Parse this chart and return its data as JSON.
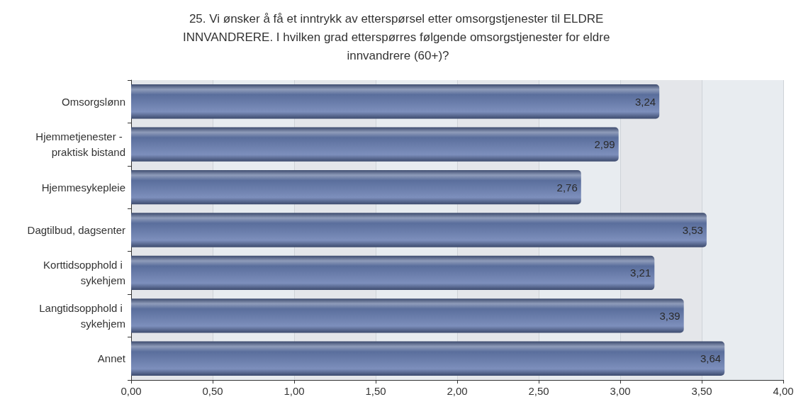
{
  "chart_data": {
    "type": "bar",
    "orientation": "horizontal",
    "title": "25. Vi ønsker å få et inntrykk av etterspørsel etter omsorgstjenester til ELDRE INNVANDRERE. I hvilken grad etterspørres følgende omsorgstjenester for eldre innvandrere (60+)?",
    "categories": [
      "Omsorgslønn",
      "Hjemmetjenester - praktisk bistand",
      "Hjemmesykepleie",
      "Dagtilbud, dagsenter",
      "Korttidsopphold i sykehjem",
      "Langtidsopphold i sykehjem",
      "Annet"
    ],
    "values": [
      3.24,
      2.99,
      2.76,
      3.53,
      3.21,
      3.39,
      3.64
    ],
    "value_labels": [
      "3,24",
      "2,99",
      "2,76",
      "3,53",
      "3,21",
      "3,39",
      "3,64"
    ],
    "color": "#5a6e9c",
    "xlim": [
      0,
      4
    ],
    "xticks": [
      {
        "value": 0,
        "label": "0,00"
      },
      {
        "value": 0.5,
        "label": "0,50"
      },
      {
        "value": 1,
        "label": "1,00"
      },
      {
        "value": 1.5,
        "label": "1,50"
      },
      {
        "value": 2,
        "label": "2,00"
      },
      {
        "value": 2.5,
        "label": "2,50"
      },
      {
        "value": 3,
        "label": "3,00"
      },
      {
        "value": 3.5,
        "label": "3,50"
      },
      {
        "value": 4,
        "label": "4,00"
      }
    ],
    "grid": true
  }
}
